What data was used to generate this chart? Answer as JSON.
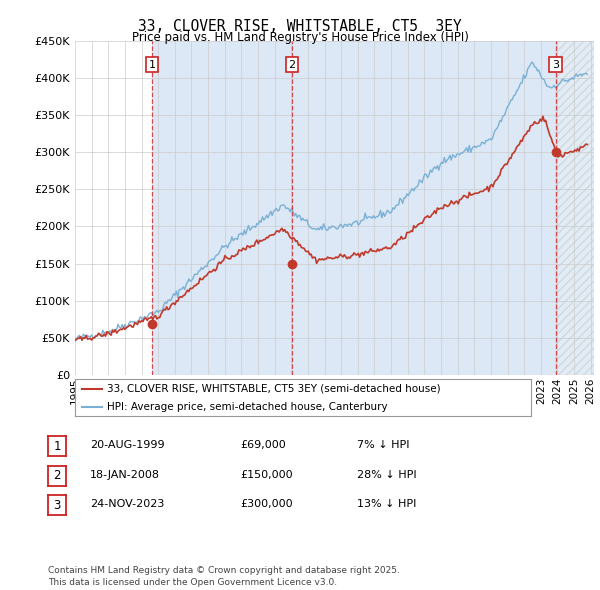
{
  "title": "33, CLOVER RISE, WHITSTABLE, CT5  3EY",
  "subtitle": "Price paid vs. HM Land Registry's House Price Index (HPI)",
  "ylim": [
    0,
    450000
  ],
  "yticks": [
    0,
    50000,
    100000,
    150000,
    200000,
    250000,
    300000,
    350000,
    400000,
    450000
  ],
  "ytick_labels": [
    "£0",
    "£50K",
    "£100K",
    "£150K",
    "£200K",
    "£250K",
    "£300K",
    "£350K",
    "£400K",
    "£450K"
  ],
  "xlim_start": 1995.0,
  "xlim_end": 2026.2,
  "xtick_years": [
    1995,
    1996,
    1997,
    1998,
    1999,
    2000,
    2001,
    2002,
    2003,
    2004,
    2005,
    2006,
    2007,
    2008,
    2009,
    2010,
    2011,
    2012,
    2013,
    2014,
    2015,
    2016,
    2017,
    2018,
    2019,
    2020,
    2021,
    2022,
    2023,
    2024,
    2025,
    2026
  ],
  "sale1_date": 1999.63,
  "sale1_price": 69000,
  "sale1_label": "1",
  "sale2_date": 2008.05,
  "sale2_price": 150000,
  "sale2_label": "2",
  "sale3_date": 2023.9,
  "sale3_price": 300000,
  "sale3_label": "3",
  "hpi_color": "#7ab0d4",
  "price_color": "#c0392b",
  "vline_color": "#cc2222",
  "dot_color": "#c0392b",
  "grid_color": "#cccccc",
  "bg_color": "#ffffff",
  "shade_color": "#dce8f5",
  "hatch_color": "#c8d8e8",
  "legend_label_price": "33, CLOVER RISE, WHITSTABLE, CT5 3EY (semi-detached house)",
  "legend_label_hpi": "HPI: Average price, semi-detached house, Canterbury",
  "table_rows": [
    {
      "num": "1",
      "date": "20-AUG-1999",
      "price": "£69,000",
      "hpi": "7% ↓ HPI"
    },
    {
      "num": "2",
      "date": "18-JAN-2008",
      "price": "£150,000",
      "hpi": "28% ↓ HPI"
    },
    {
      "num": "3",
      "date": "24-NOV-2023",
      "price": "£300,000",
      "hpi": "13% ↓ HPI"
    }
  ],
  "footer": "Contains HM Land Registry data © Crown copyright and database right 2025.\nThis data is licensed under the Open Government Licence v3.0."
}
